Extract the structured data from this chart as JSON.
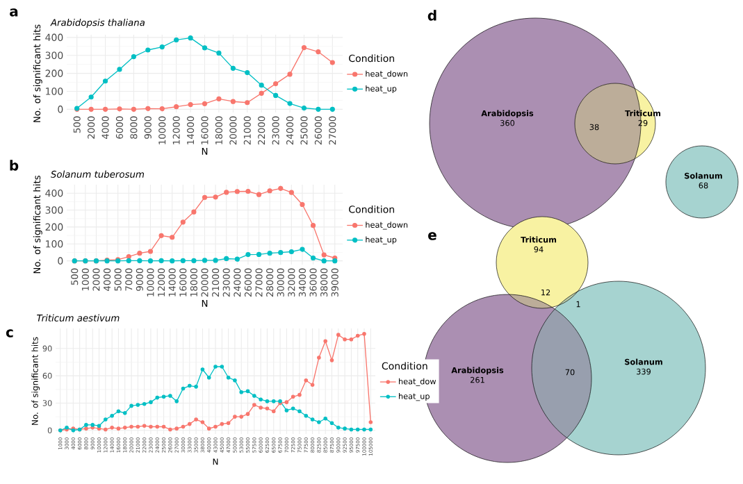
{
  "chart_data": [
    {
      "type": "line",
      "title": "Arabidopsis thaliana",
      "xlabel": "N",
      "ylabel": "No. of significant hits",
      "legend_title": "Condition",
      "annotations": [
        "a"
      ],
      "categories": [
        "500",
        "2000",
        "4000",
        "6000",
        "8000",
        "9000",
        "10000",
        "12000",
        "14000",
        "16000",
        "18000",
        "20000",
        "21000",
        "22000",
        "23000",
        "24000",
        "25000",
        "26000",
        "27000"
      ],
      "series": [
        {
          "name": "heat_down",
          "color": "#f8766d",
          "values": [
            0,
            0,
            0,
            2,
            0,
            4,
            3,
            14,
            26,
            31,
            58,
            43,
            37,
            89,
            142,
            195,
            343,
            320,
            260
          ]
        },
        {
          "name": "heat_up",
          "color": "#00bfc4",
          "values": [
            5,
            68,
            157,
            222,
            293,
            330,
            347,
            386,
            397,
            342,
            313,
            228,
            204,
            134,
            77,
            32,
            7,
            0,
            0
          ]
        }
      ],
      "ylim": [
        -18,
        415
      ],
      "yticks": [
        0,
        100,
        200,
        300,
        400
      ],
      "grid": true,
      "legend": "right",
      "marker": "circle"
    },
    {
      "type": "line",
      "title": "Solanum tuberosum",
      "xlabel": "N",
      "ylabel": "No. of significant hits",
      "legend_title": "Condition",
      "annotations": [
        "b"
      ],
      "categories": [
        "500",
        "1000",
        "2000",
        "4000",
        "5000",
        "7000",
        "9000",
        "10000",
        "12000",
        "14000",
        "16000",
        "18000",
        "20000",
        "21000",
        "23000",
        "24000",
        "26000",
        "27000",
        "28000",
        "30000",
        "32000",
        "34000",
        "36000",
        "38000",
        "39000"
      ],
      "series": [
        {
          "name": "heat_down",
          "color": "#f8766d",
          "values": [
            0,
            0,
            0,
            4,
            7,
            25,
            45,
            56,
            149,
            139,
            229,
            289,
            375,
            377,
            405,
            410,
            411,
            392,
            414,
            428,
            404,
            333,
            209,
            35,
            17
          ]
        },
        {
          "name": "heat_up",
          "color": "#00bfc4",
          "values": [
            0,
            0,
            0,
            0,
            0,
            1,
            1,
            0,
            1,
            0,
            1,
            1,
            3,
            3,
            13,
            10,
            37,
            38,
            45,
            49,
            54,
            68,
            17,
            0,
            0
          ]
        }
      ],
      "ylim": [
        -22,
        450
      ],
      "yticks": [
        0,
        100,
        200,
        300,
        400
      ],
      "grid": true,
      "legend": "right",
      "marker": "circle"
    },
    {
      "type": "line",
      "title": "Triticum aestivum",
      "xlabel": "N",
      "ylabel": "No. of significant hits",
      "legend_title": "Condition",
      "annotations": [
        "c"
      ],
      "categories": [
        "1000",
        "3000",
        "4000",
        "6000",
        "8000",
        "9000",
        "10000",
        "12000",
        "14000",
        "16000",
        "18000",
        "20000",
        "21000",
        "22000",
        "23000",
        "24000",
        "25000",
        "26000",
        "27000",
        "30000",
        "33000",
        "35000",
        "38000",
        "40000",
        "43000",
        "45000",
        "47000",
        "50000",
        "53000",
        "55000",
        "57500",
        "60000",
        "62500",
        "65000",
        "67500",
        "70000",
        "72500",
        "75000",
        "77500",
        "80000",
        "82500",
        "85000",
        "87500",
        "90000",
        "92500",
        "95000",
        "97500",
        "100000",
        "105000"
      ],
      "series": [
        {
          "name": "heat_dow",
          "color": "#f8766d",
          "values": [
            0,
            1,
            2,
            1,
            2,
            3,
            2,
            1,
            3,
            2,
            3,
            4,
            4,
            5,
            4,
            4,
            4,
            1,
            2,
            4,
            7,
            12,
            9,
            2,
            4,
            7,
            8,
            15,
            15,
            18,
            28,
            25,
            24,
            21,
            30,
            31,
            37,
            39,
            55,
            50,
            80,
            98,
            77,
            105,
            100,
            100,
            104,
            106,
            9
          ]
        },
        {
          "name": "heat_up",
          "color": "#00bfc4",
          "values": [
            0,
            3,
            0,
            1,
            6,
            6,
            5,
            12,
            16,
            21,
            19,
            27,
            28,
            29,
            31,
            36,
            37,
            38,
            32,
            46,
            49,
            48,
            67,
            58,
            70,
            70,
            58,
            55,
            42,
            43,
            38,
            34,
            32,
            32,
            32,
            22,
            24,
            21,
            16,
            12,
            9,
            13,
            8,
            3,
            2,
            1,
            1,
            1,
            1
          ]
        }
      ],
      "ylim": [
        -4,
        112
      ],
      "yticks": [
        0,
        30,
        60,
        90
      ],
      "grid": true,
      "legend": "right",
      "marker": "circle"
    },
    {
      "type": "other",
      "annotations": [
        "d",
        "38"
      ],
      "categories": [
        "Arabidopsis",
        "Triticum",
        "Solanum"
      ],
      "values": [
        360,
        29,
        68
      ],
      "data_labels": true,
      "colors": [
        "#ab8fb2",
        "#f8f2a2",
        "#a6d3d0"
      ]
    },
    {
      "type": "other",
      "annotations": [
        "e",
        "12",
        "1",
        "70"
      ],
      "categories": [
        "Triticum",
        "Arabidopsis",
        "Solanum"
      ],
      "values": [
        94,
        261,
        339
      ],
      "data_labels": true,
      "colors": [
        "#f8f2a2",
        "#ab8fb2",
        "#a6d3d0"
      ]
    }
  ]
}
